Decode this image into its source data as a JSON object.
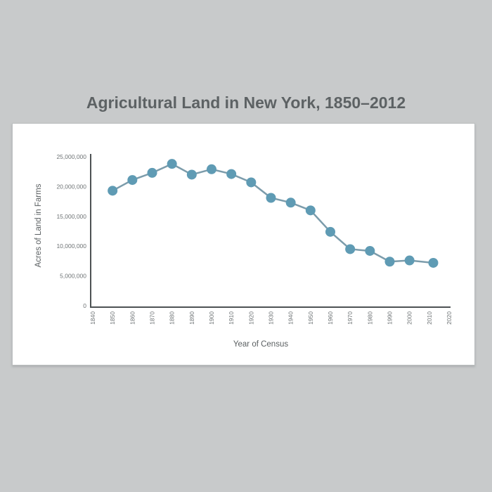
{
  "title": "Agricultural Land in New York, 1850–2012",
  "colors": {
    "background": "#c8cacb",
    "card": "#ffffff",
    "title_text": "#5d6264",
    "axis_line": "#4d5254",
    "tick_text": "#6e7375",
    "axis_title_text": "#5a5f61",
    "marker": "#5f9bb4",
    "series_line": "#7c9cab"
  },
  "chart_data": {
    "type": "line",
    "title": "Agricultural Land in New York, 1850–2012",
    "xlabel": "Year of Census",
    "ylabel": "Acres of Land in Farms",
    "x": [
      1850,
      1860,
      1870,
      1880,
      1890,
      1900,
      1910,
      1920,
      1930,
      1940,
      1950,
      1960,
      1970,
      1980,
      1990,
      2000,
      2012
    ],
    "values": [
      19300000,
      21100000,
      22300000,
      23800000,
      22000000,
      22900000,
      22100000,
      20700000,
      18100000,
      17300000,
      16000000,
      12400000,
      9500000,
      9200000,
      7400000,
      7600000,
      7200000
    ],
    "x_ticks": [
      1840,
      1850,
      1860,
      1870,
      1880,
      1890,
      1900,
      1910,
      1920,
      1930,
      1940,
      1950,
      1960,
      1970,
      1980,
      1990,
      2000,
      2010,
      2020
    ],
    "y_ticks": [
      {
        "value": 0,
        "label": "0"
      },
      {
        "value": 5000000,
        "label": "5,000,000"
      },
      {
        "value": 10000000,
        "label": "10,000,000"
      },
      {
        "value": 15000000,
        "label": "15,000,000"
      },
      {
        "value": 20000000,
        "label": "20,000,000"
      },
      {
        "value": 25000000,
        "label": "25,000,000"
      }
    ],
    "xlim": [
      1840,
      2020
    ],
    "ylim": [
      0,
      25000000
    ],
    "grid": false,
    "legend": false,
    "marker": "circle"
  }
}
